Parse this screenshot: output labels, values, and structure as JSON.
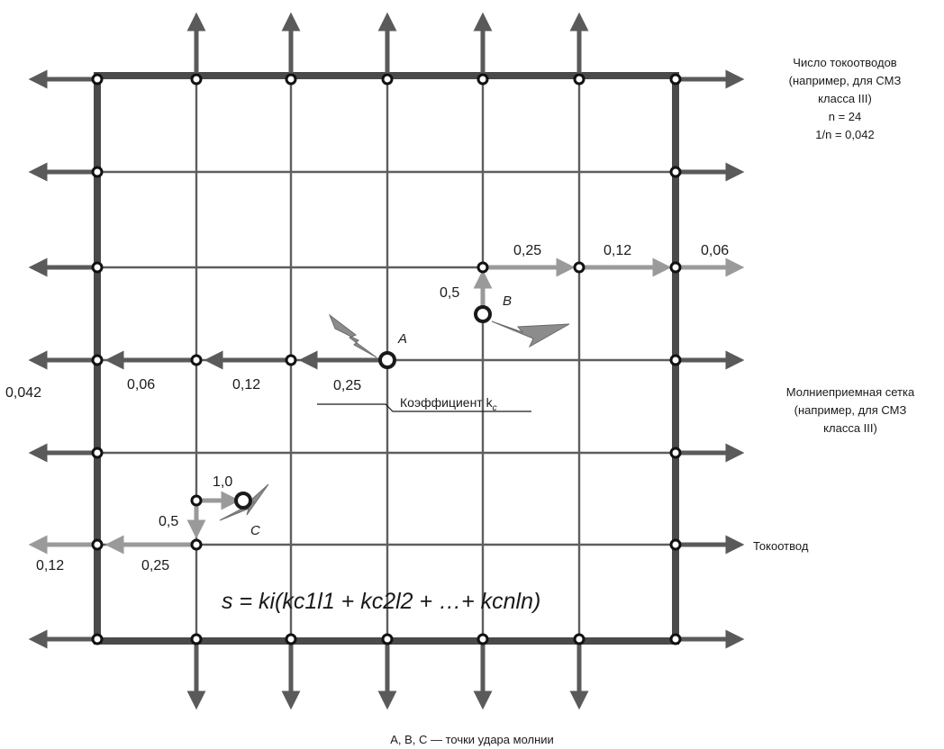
{
  "legend": {
    "downconductors": {
      "line1": "Число токоотводов",
      "line2": "(например, для СМЗ",
      "line3": "класса III)",
      "n_line": "n = 24",
      "inv_line": "1/n = 0,042"
    },
    "mesh": {
      "line1": "Молниеприемная сетка",
      "line2": "(например, для СМЗ",
      "line3": "класса III)"
    },
    "downconductor_label": "Токоотвод",
    "coefficient_label": "Коэффициент k",
    "coefficient_sub": "c",
    "caption": "А, В, С — точки удара молнии"
  },
  "points": {
    "a": "A",
    "b": "B",
    "c": "C"
  },
  "values": {
    "row4_left_outer": "0,042",
    "row4_a": "0,06",
    "row4_b": "0,12",
    "row4_c": "0,25",
    "row3_a": "0,25",
    "row3_b": "0,12",
    "row3_c": "0,06",
    "b_up": "0,5",
    "c_right": "1,0",
    "c_down": "0,5",
    "row6_a": "0,25",
    "row6_b": "0,12"
  },
  "formula": "s = ki(kc1l1 + kc2l2 + …+ kcnln)",
  "colors": {
    "mesh": "#5e5e5e",
    "frame": "#4a4a4a",
    "arrow_dark": "#5a5a5a",
    "arrow_light": "#9a9a9a",
    "bolt": "#8c8c8c"
  }
}
